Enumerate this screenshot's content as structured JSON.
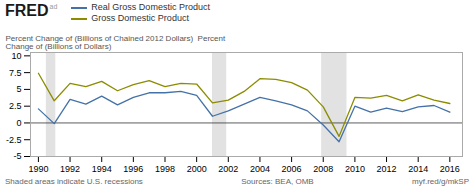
{
  "chart_data": {
    "type": "line",
    "title": "FRED",
    "y_label": "Percent Change of (Billions of Chained 2012 Dollars)  Percent\nChange of (Billions of Dollars)",
    "annotations": [
      "ad",
      "Shaded areas indicate U.S. recessions",
      "Sources: BEA, OMB",
      "myf.red/g/mkSP"
    ],
    "x": [
      1990,
      1991,
      1992,
      1993,
      1994,
      1995,
      1996,
      1997,
      1998,
      1999,
      2000,
      2001,
      2002,
      2003,
      2004,
      2005,
      2006,
      2007,
      2008,
      2009,
      2010,
      2011,
      2012,
      2013,
      2014,
      2015,
      2016
    ],
    "series": [
      {
        "name": "Real Gross Domestic Product",
        "color": "#4472a8",
        "values": [
          2.1,
          -0.1,
          3.5,
          2.8,
          4.0,
          2.7,
          3.8,
          4.5,
          4.5,
          4.7,
          4.1,
          1.0,
          1.8,
          2.8,
          3.8,
          3.3,
          2.7,
          1.8,
          -0.3,
          -2.8,
          2.5,
          1.6,
          2.2,
          1.7,
          2.4,
          2.6,
          1.6
        ]
      },
      {
        "name": "Gross Domestic Product",
        "color": "#8c8c00",
        "values": [
          7.4,
          3.3,
          5.9,
          5.4,
          6.2,
          4.8,
          5.7,
          6.3,
          5.4,
          5.9,
          5.8,
          3.0,
          3.4,
          4.7,
          6.6,
          6.5,
          6.0,
          4.9,
          2.4,
          -2.0,
          3.8,
          3.7,
          4.1,
          3.3,
          4.2,
          3.4,
          2.9
        ]
      }
    ],
    "recession_bands": [
      [
        1990.5,
        1991.1
      ],
      [
        2001.0,
        2001.9
      ],
      [
        2007.9,
        2009.5
      ]
    ],
    "xlim": [
      1989.5,
      2016.8
    ],
    "xticks": [
      1990,
      1992,
      1994,
      1996,
      1998,
      2000,
      2002,
      2004,
      2006,
      2008,
      2010,
      2012,
      2014,
      2016
    ],
    "ylim": [
      -5.0,
      10.5
    ],
    "yticks": [
      -5.0,
      -2.5,
      0.0,
      2.5,
      5.0,
      7.5,
      10.0
    ],
    "grid": false
  }
}
